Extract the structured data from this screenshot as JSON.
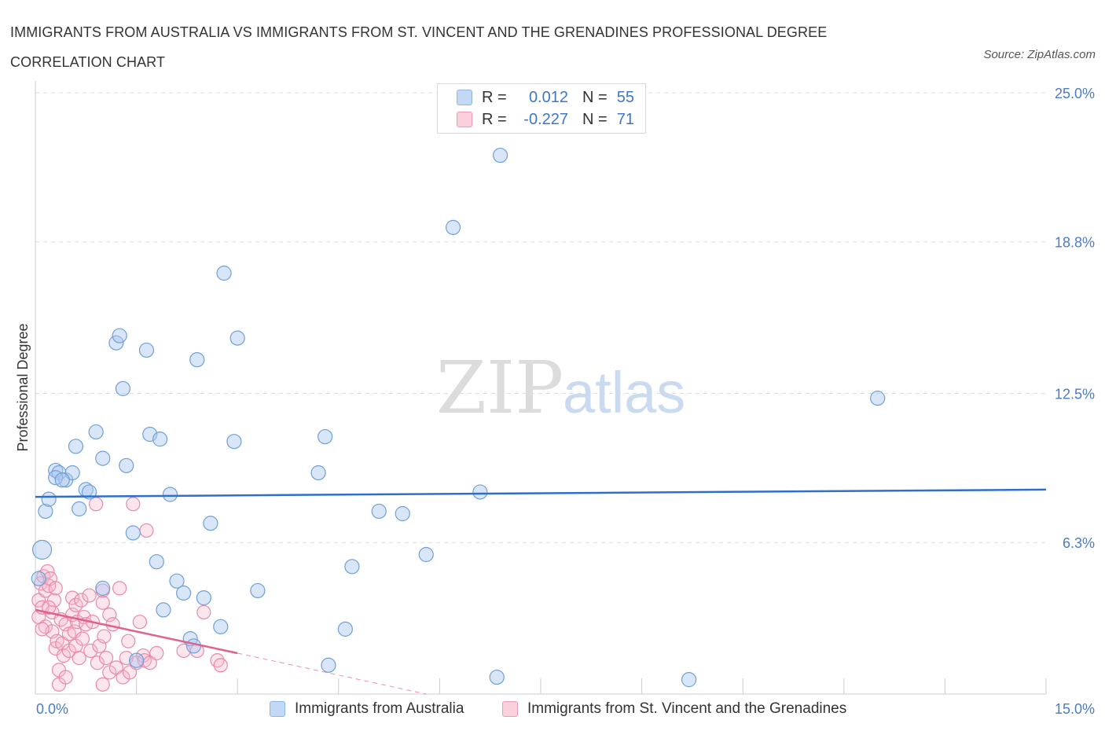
{
  "header": {
    "title": "IMMIGRANTS FROM AUSTRALIA VS IMMIGRANTS FROM ST. VINCENT AND THE GRENADINES PROFESSIONAL DEGREE CORRELATION CHART",
    "source": "Source: ZipAtlas.com"
  },
  "watermark": {
    "zip": "ZIP",
    "atlas": "atlas"
  },
  "legend": {
    "rows": [
      {
        "r_label": "R =",
        "r_value": "0.012",
        "n_label": "N =",
        "n_value": "55",
        "color": "#aac8f0"
      },
      {
        "r_label": "R =",
        "r_value": "-0.227",
        "n_label": "N =",
        "n_value": "71",
        "color": "#f7b8cc"
      }
    ]
  },
  "bottom_legend": {
    "australia": "Immigrants from Australia",
    "stvincent": "Immigrants from St. Vincent and the Grenadines"
  },
  "colors": {
    "blue_fill": "#aac8f0",
    "blue_stroke": "#6f9fd8",
    "blue_line": "#2f6fca",
    "pink_fill": "#f7b8cc",
    "pink_stroke": "#e98aa8",
    "pink_line": "#e0628f",
    "tick_text": "#4a7cc6",
    "grid": "#dddddd"
  },
  "chart_data": {
    "type": "scatter",
    "ylabel": "Professional Degree",
    "xlim": [
      0,
      15
    ],
    "ylim": [
      0,
      25
    ],
    "x_tick_labels": [
      "0.0%",
      "15.0%"
    ],
    "y_ticks": [
      {
        "value": 6.3,
        "label": "6.3%"
      },
      {
        "value": 12.5,
        "label": "12.5%"
      },
      {
        "value": 18.8,
        "label": "18.8%"
      },
      {
        "value": 25.0,
        "label": "25.0%"
      }
    ],
    "grid": true,
    "series": [
      {
        "name": "Immigrants from Australia",
        "trend": [
          [
            0,
            8.2
          ],
          [
            15,
            8.5
          ]
        ],
        "points": [
          [
            0.05,
            4.8
          ],
          [
            0.1,
            6.0
          ],
          [
            0.15,
            7.6
          ],
          [
            0.2,
            8.1
          ],
          [
            0.3,
            9.3
          ],
          [
            0.35,
            9.2
          ],
          [
            0.45,
            8.9
          ],
          [
            0.55,
            9.2
          ],
          [
            0.6,
            10.3
          ],
          [
            0.65,
            7.7
          ],
          [
            0.75,
            8.5
          ],
          [
            0.8,
            8.4
          ],
          [
            0.9,
            10.9
          ],
          [
            1.0,
            9.8
          ],
          [
            1.2,
            14.6
          ],
          [
            1.25,
            14.9
          ],
          [
            1.3,
            12.7
          ],
          [
            1.35,
            9.5
          ],
          [
            1.45,
            6.7
          ],
          [
            1.5,
            1.4
          ],
          [
            1.65,
            14.3
          ],
          [
            1.7,
            10.8
          ],
          [
            1.8,
            5.5
          ],
          [
            1.85,
            10.6
          ],
          [
            1.9,
            3.5
          ],
          [
            2.0,
            8.3
          ],
          [
            2.1,
            4.7
          ],
          [
            2.2,
            4.2
          ],
          [
            2.3,
            2.3
          ],
          [
            2.35,
            2.0
          ],
          [
            2.4,
            13.9
          ],
          [
            2.5,
            4.0
          ],
          [
            2.6,
            7.1
          ],
          [
            2.75,
            2.8
          ],
          [
            2.8,
            17.5
          ],
          [
            2.95,
            10.5
          ],
          [
            3.0,
            14.8
          ],
          [
            3.3,
            4.3
          ],
          [
            4.2,
            9.2
          ],
          [
            4.3,
            10.7
          ],
          [
            4.35,
            1.2
          ],
          [
            4.6,
            2.7
          ],
          [
            4.7,
            5.3
          ],
          [
            5.1,
            7.6
          ],
          [
            5.45,
            7.5
          ],
          [
            5.8,
            5.8
          ],
          [
            6.2,
            19.4
          ],
          [
            6.6,
            8.4
          ],
          [
            6.85,
            0.7
          ],
          [
            6.9,
            22.4
          ],
          [
            9.7,
            0.6
          ],
          [
            12.5,
            12.3
          ],
          [
            0.3,
            9.0
          ],
          [
            0.4,
            8.9
          ],
          [
            1.0,
            4.4
          ]
        ]
      },
      {
        "name": "Immigrants from St. Vincent and the Grenadines",
        "trend": [
          [
            0,
            3.5
          ],
          [
            3.0,
            1.7
          ]
        ],
        "trend_dashed": [
          [
            3.0,
            1.7
          ],
          [
            5.8,
            0.0
          ]
        ],
        "points": [
          [
            0.05,
            3.9
          ],
          [
            0.05,
            3.2
          ],
          [
            0.08,
            4.6
          ],
          [
            0.1,
            3.6
          ],
          [
            0.12,
            4.9
          ],
          [
            0.15,
            4.3
          ],
          [
            0.15,
            2.8
          ],
          [
            0.18,
            5.1
          ],
          [
            0.2,
            4.5
          ],
          [
            0.22,
            4.8
          ],
          [
            0.25,
            2.6
          ],
          [
            0.25,
            3.4
          ],
          [
            0.28,
            3.9
          ],
          [
            0.3,
            4.4
          ],
          [
            0.3,
            1.9
          ],
          [
            0.32,
            2.2
          ],
          [
            0.35,
            1.0
          ],
          [
            0.35,
            0.4
          ],
          [
            0.38,
            3.1
          ],
          [
            0.4,
            2.1
          ],
          [
            0.42,
            1.6
          ],
          [
            0.45,
            2.9
          ],
          [
            0.45,
            0.7
          ],
          [
            0.5,
            2.5
          ],
          [
            0.5,
            1.8
          ],
          [
            0.55,
            3.3
          ],
          [
            0.55,
            4.0
          ],
          [
            0.58,
            2.6
          ],
          [
            0.6,
            3.7
          ],
          [
            0.6,
            2.0
          ],
          [
            0.62,
            3.0
          ],
          [
            0.65,
            1.5
          ],
          [
            0.68,
            3.9
          ],
          [
            0.7,
            2.3
          ],
          [
            0.72,
            3.2
          ],
          [
            0.75,
            2.9
          ],
          [
            0.8,
            4.1
          ],
          [
            0.82,
            1.8
          ],
          [
            0.85,
            3.0
          ],
          [
            0.9,
            7.9
          ],
          [
            0.92,
            1.3
          ],
          [
            0.95,
            2.0
          ],
          [
            1.0,
            0.4
          ],
          [
            1.0,
            3.8
          ],
          [
            1.0,
            4.3
          ],
          [
            1.02,
            2.4
          ],
          [
            1.05,
            1.5
          ],
          [
            1.1,
            0.9
          ],
          [
            1.1,
            3.3
          ],
          [
            1.15,
            2.9
          ],
          [
            1.2,
            1.1
          ],
          [
            1.25,
            4.4
          ],
          [
            1.3,
            0.7
          ],
          [
            1.35,
            1.5
          ],
          [
            1.38,
            2.2
          ],
          [
            1.4,
            0.9
          ],
          [
            1.45,
            7.9
          ],
          [
            1.5,
            1.3
          ],
          [
            1.55,
            3.0
          ],
          [
            1.6,
            1.6
          ],
          [
            1.62,
            1.4
          ],
          [
            1.65,
            6.8
          ],
          [
            1.7,
            1.3
          ],
          [
            1.8,
            1.7
          ],
          [
            2.2,
            1.8
          ],
          [
            2.4,
            1.8
          ],
          [
            2.5,
            3.4
          ],
          [
            2.7,
            1.4
          ],
          [
            2.75,
            1.2
          ],
          [
            0.2,
            3.6
          ],
          [
            0.1,
            2.7
          ]
        ]
      }
    ]
  }
}
